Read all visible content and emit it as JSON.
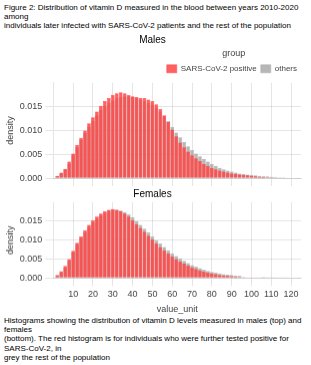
{
  "title": "Figure 2: Distribution of vitamin D measured in the blood between years 2010-2020 among\nindividuals later infected with SARS-CoV-2 patients and the rest of the population",
  "caption": "Histograms showing the distribution of vitamin D levels measured in males (top) and females\n(bottom). The red histogram is for individuals who were further tested positive for SARS-CoV-2, in\ngrey the rest of the population",
  "chart_data": [
    {
      "type": "bar",
      "title": "Males",
      "ylabel": "density",
      "xlim": [
        0,
        125
      ],
      "ylim": [
        0,
        0.02
      ],
      "xticks": [
        10,
        20,
        30,
        40,
        50,
        60,
        70,
        80,
        90,
        100,
        110,
        120
      ],
      "yticks": [
        {
          "value": 0,
          "label": "0.000"
        },
        0.005,
        {
          "value": 0.01,
          "label": "0.010"
        },
        0.015
      ],
      "grid": true,
      "tick_labels": "y",
      "legend": "upper right",
      "legend_title": "group",
      "series": [
        {
          "name": "SARS-CoV-2 positive",
          "color": "#FF4444",
          "x": [
            2,
            4,
            6,
            8,
            10,
            12,
            14,
            16,
            18,
            20,
            22,
            24,
            26,
            28,
            30,
            32,
            34,
            36,
            38,
            40,
            42,
            44,
            46,
            48,
            50,
            52,
            54,
            56,
            58,
            60,
            62,
            64,
            66,
            68,
            70,
            72,
            74,
            76,
            78,
            80,
            82,
            84,
            86,
            88,
            90,
            92,
            94,
            96,
            98,
            100,
            102,
            104,
            106,
            108,
            110,
            112,
            114,
            116,
            118,
            120
          ],
          "values": [
            0.0005,
            0.0012,
            0.002,
            0.0035,
            0.0052,
            0.007,
            0.0085,
            0.01,
            0.0115,
            0.0128,
            0.014,
            0.0152,
            0.0162,
            0.0168,
            0.0175,
            0.0178,
            0.018,
            0.0178,
            0.0175,
            0.0172,
            0.017,
            0.0168,
            0.0168,
            0.0165,
            0.0162,
            0.0155,
            0.0145,
            0.0132,
            0.0118,
            0.0102,
            0.0088,
            0.0075,
            0.0065,
            0.0056,
            0.0048,
            0.0042,
            0.0036,
            0.003,
            0.0026,
            0.0022,
            0.0019,
            0.0016,
            0.0014,
            0.0012,
            0.001,
            0.0009,
            0.0008,
            0.0007,
            0.0006,
            0.0005,
            0.0004,
            0.0003,
            0.0003,
            0.0002,
            0.0002,
            0.0001,
            0.0001,
            0.0001,
            0.0001,
            0.0
          ]
        },
        {
          "name": "others",
          "color": "#AAAAAA",
          "x": [
            2,
            4,
            6,
            8,
            10,
            12,
            14,
            16,
            18,
            20,
            22,
            24,
            26,
            28,
            30,
            32,
            34,
            36,
            38,
            40,
            42,
            44,
            46,
            48,
            50,
            52,
            54,
            56,
            58,
            60,
            62,
            64,
            66,
            68,
            70,
            72,
            74,
            76,
            78,
            80,
            82,
            84,
            86,
            88,
            90,
            92,
            94,
            96,
            98,
            100,
            102,
            104,
            106,
            108,
            110,
            112,
            114,
            116,
            118,
            120
          ],
          "values": [
            0.0004,
            0.001,
            0.0018,
            0.003,
            0.0048,
            0.0065,
            0.008,
            0.0095,
            0.0108,
            0.012,
            0.0132,
            0.0143,
            0.0152,
            0.0158,
            0.0163,
            0.0168,
            0.017,
            0.0172,
            0.0172,
            0.017,
            0.0168,
            0.0165,
            0.0162,
            0.0158,
            0.0154,
            0.0148,
            0.014,
            0.013,
            0.012,
            0.0108,
            0.0096,
            0.0086,
            0.0076,
            0.0067,
            0.0059,
            0.0052,
            0.0046,
            0.004,
            0.0035,
            0.003,
            0.0026,
            0.0022,
            0.0019,
            0.0016,
            0.0014,
            0.0012,
            0.001,
            0.0009,
            0.0008,
            0.0007,
            0.0006,
            0.0005,
            0.0004,
            0.0004,
            0.0003,
            0.0003,
            0.0002,
            0.0002,
            0.0001,
            0.0001
          ]
        }
      ]
    },
    {
      "type": "bar",
      "title": "Females",
      "xlabel": "value_unit",
      "ylabel": "density",
      "xlim": [
        0,
        125
      ],
      "ylim": [
        0,
        0.02
      ],
      "xticks": [
        10,
        20,
        30,
        40,
        50,
        60,
        70,
        80,
        90,
        100,
        110,
        120
      ],
      "yticks": [
        {
          "value": 0,
          "label": "0.000"
        },
        0.005,
        {
          "value": 0.01,
          "label": "0.010"
        },
        0.015
      ],
      "grid": true,
      "legend": false,
      "series": [
        {
          "color": "#FF4444",
          "x": [
            2,
            4,
            6,
            8,
            10,
            12,
            14,
            16,
            18,
            20,
            22,
            24,
            26,
            28,
            30,
            32,
            34,
            36,
            38,
            40,
            42,
            44,
            46,
            48,
            50,
            52,
            54,
            56,
            58,
            60,
            62,
            64,
            66,
            68,
            70,
            72,
            74,
            76,
            78,
            80,
            82,
            84,
            86,
            88,
            90,
            92,
            94,
            96,
            98,
            100,
            102,
            104,
            106,
            108,
            110,
            112,
            114,
            116,
            118,
            120
          ],
          "values": [
            0.0008,
            0.0018,
            0.0032,
            0.005,
            0.0072,
            0.0093,
            0.011,
            0.0126,
            0.014,
            0.0152,
            0.0162,
            0.017,
            0.0176,
            0.018,
            0.0182,
            0.018,
            0.0176,
            0.017,
            0.0162,
            0.0152,
            0.0142,
            0.0132,
            0.0122,
            0.0112,
            0.0102,
            0.0092,
            0.0082,
            0.0073,
            0.0065,
            0.0057,
            0.005,
            0.0044,
            0.0038,
            0.0033,
            0.0028,
            0.0024,
            0.002,
            0.0017,
            0.0014,
            0.0012,
            0.001,
            0.0008,
            0.0007,
            0.0006,
            0.0005,
            0.0004,
            0.0003,
            0.0003,
            0.0002,
            0.0002,
            0.0002,
            0.0001,
            0.0001,
            0.0001,
            0.0001,
            0.0001,
            0.0,
            0.0,
            0.0,
            0.0
          ]
        },
        {
          "color": "#AAAAAA",
          "x": [
            2,
            4,
            6,
            8,
            10,
            12,
            14,
            16,
            18,
            20,
            22,
            24,
            26,
            28,
            30,
            32,
            34,
            36,
            38,
            40,
            42,
            44,
            46,
            48,
            50,
            52,
            54,
            56,
            58,
            60,
            62,
            64,
            66,
            68,
            70,
            72,
            74,
            76,
            78,
            80,
            82,
            84,
            86,
            88,
            90,
            92,
            94,
            106,
            108,
            110,
            112,
            114,
            116,
            118,
            120
          ],
          "values": [
            0.0006,
            0.0015,
            0.0028,
            0.0046,
            0.0068,
            0.0088,
            0.0106,
            0.012,
            0.0134,
            0.0146,
            0.0156,
            0.0165,
            0.0172,
            0.0177,
            0.018,
            0.018,
            0.0178,
            0.0174,
            0.0168,
            0.016,
            0.015,
            0.014,
            0.013,
            0.012,
            0.011,
            0.01,
            0.0091,
            0.0082,
            0.0073,
            0.0065,
            0.0058,
            0.0051,
            0.0045,
            0.0039,
            0.0034,
            0.003,
            0.0026,
            0.0022,
            0.0019,
            0.0016,
            0.0014,
            0.0012,
            0.001,
            0.0009,
            0.0008,
            0.0007,
            0.0006,
            0.0003,
            0.0002,
            0.0002,
            0.0001,
            0.0001,
            0.0001,
            0.0001,
            0.0
          ]
        }
      ]
    }
  ]
}
